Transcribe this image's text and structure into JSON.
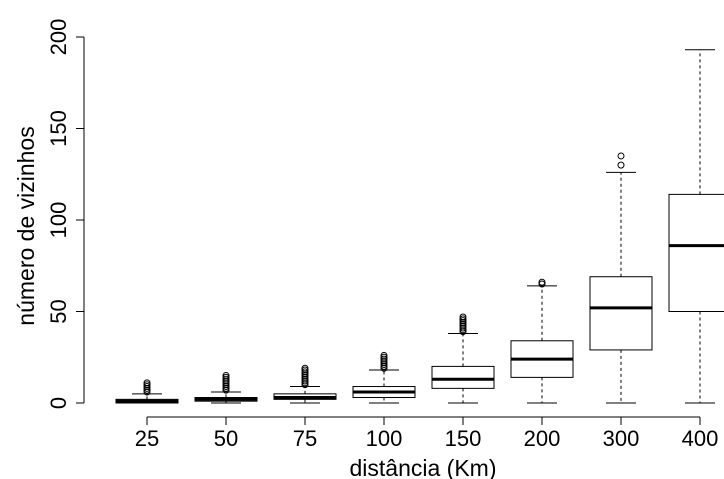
{
  "chart_data": {
    "type": "boxplot",
    "xlabel": "distância (Km)",
    "ylabel": "número de vizinhos",
    "ylim": [
      0,
      200
    ],
    "yticks": [
      0,
      50,
      100,
      150,
      200
    ],
    "categories": [
      "25",
      "50",
      "75",
      "100",
      "150",
      "200",
      "300",
      "400"
    ],
    "boxes": [
      {
        "category": "25",
        "min": 0,
        "q1": 0,
        "median": 1,
        "q3": 2,
        "max": 5,
        "outliers": [
          6,
          7,
          8,
          9,
          10,
          11
        ]
      },
      {
        "category": "50",
        "min": 0,
        "q1": 1,
        "median": 2,
        "q3": 3,
        "max": 6,
        "outliers": [
          7,
          8,
          9,
          10,
          11,
          12,
          13,
          14,
          15
        ]
      },
      {
        "category": "75",
        "min": 0,
        "q1": 2,
        "median": 3,
        "q3": 5,
        "max": 9,
        "outliers": [
          10,
          11,
          12,
          13,
          14,
          15,
          16,
          17,
          18,
          19
        ]
      },
      {
        "category": "100",
        "min": 0,
        "q1": 3,
        "median": 6,
        "q3": 9,
        "max": 18,
        "outliers": [
          19,
          20,
          21,
          22,
          23,
          24,
          25,
          26
        ]
      },
      {
        "category": "150",
        "min": 0,
        "q1": 8,
        "median": 13,
        "q3": 20,
        "max": 38,
        "outliers": [
          39,
          40,
          41,
          42,
          43,
          44,
          45,
          46,
          47
        ]
      },
      {
        "category": "200",
        "min": 0,
        "q1": 14,
        "median": 24,
        "q3": 34,
        "max": 64,
        "outliers": [
          65,
          66
        ]
      },
      {
        "category": "300",
        "min": 0,
        "q1": 29,
        "median": 52,
        "q3": 69,
        "max": 126,
        "outliers": [
          130,
          135
        ]
      },
      {
        "category": "400",
        "min": 0,
        "q1": 50,
        "median": 86,
        "q3": 114,
        "max": 193,
        "outliers": []
      }
    ]
  }
}
